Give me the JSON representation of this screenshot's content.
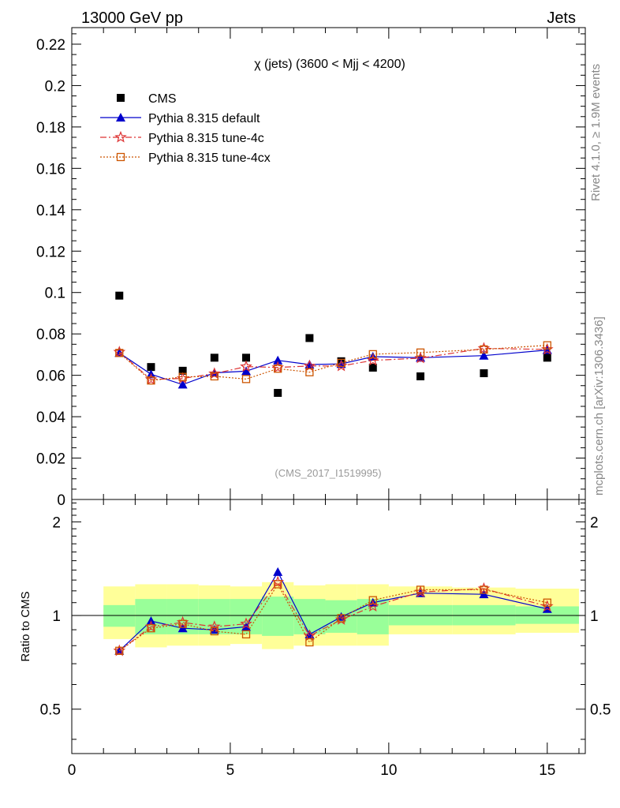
{
  "header": {
    "left": "13000 GeV pp",
    "right": "Jets"
  },
  "side_labels": {
    "rivet": "Rivet 4.1.0, ≥ 1.9M events",
    "mcplots": "mcplots.cern.ch [arXiv:1306.3436]"
  },
  "colors": {
    "cms": "#000000",
    "default": "#0000cc",
    "tune4c": "#dd3333",
    "tune4cx": "#cc5500",
    "band_inner": "#99ff99",
    "band_outer": "#ffff99"
  },
  "chart_data": {
    "type": "scatter",
    "title": "χ (jets) (3600 < Mjj < 4200)",
    "watermark": "(CMS_2017_I1519995)",
    "xlim": [
      0,
      16.2
    ],
    "ylim": [
      0,
      0.228
    ],
    "y_ticks": [
      0,
      0.02,
      0.04,
      0.06,
      0.08,
      0.1,
      0.12,
      0.14,
      0.16,
      0.18,
      0.2,
      0.22
    ],
    "y_tick_labels": [
      "0",
      "0.02",
      "0.04",
      "0.06",
      "0.08",
      "0.1",
      "0.12",
      "0.14",
      "0.16",
      "0.18",
      "0.2",
      "0.22"
    ],
    "x_ticks": [
      0,
      5,
      10,
      15
    ],
    "x_tick_labels": [
      "0",
      "5",
      "10",
      "15"
    ],
    "x": [
      1.5,
      2.5,
      3.5,
      4.5,
      5.5,
      6.5,
      7.5,
      8.5,
      9.5,
      11,
      13,
      15
    ],
    "bin_edges": [
      1,
      2,
      3,
      4,
      5,
      6,
      7,
      8,
      9,
      10,
      12,
      14,
      16
    ],
    "series": [
      {
        "name": "CMS",
        "key": "cms",
        "marker": "square-filled",
        "values": [
          0.0985,
          0.064,
          0.0622,
          0.0685,
          0.0685,
          0.0515,
          0.078,
          0.0668,
          0.0637,
          0.0595,
          0.061,
          0.0685
        ]
      },
      {
        "name": "Pythia 8.315 default",
        "key": "default",
        "marker": "triangle-filled",
        "values": [
          0.0708,
          0.0605,
          0.0555,
          0.0612,
          0.062,
          0.0672,
          0.0652,
          0.0655,
          0.069,
          0.0685,
          0.0695,
          0.0722
        ]
      },
      {
        "name": "Pythia 8.315 tune-4c",
        "key": "tune4c",
        "marker": "star-open",
        "values": [
          0.0712,
          0.058,
          0.0585,
          0.0608,
          0.0642,
          0.0638,
          0.0645,
          0.0645,
          0.0672,
          0.0683,
          0.073,
          0.0725
        ]
      },
      {
        "name": "Pythia 8.315 tune-4cx",
        "key": "tune4cx",
        "marker": "square-open",
        "values": [
          0.0708,
          0.0575,
          0.0592,
          0.0595,
          0.0582,
          0.0632,
          0.0615,
          0.066,
          0.0702,
          0.071,
          0.0725,
          0.0745
        ]
      }
    ],
    "ratio": {
      "ylabel": "Ratio to CMS",
      "ylim": [
        0.36,
        2.36
      ],
      "y_ticks": [
        0.5,
        1,
        2
      ],
      "y_tick_labels": [
        "0.5",
        "1",
        "2"
      ],
      "band_inner_lo": [
        0.92,
        0.87,
        0.87,
        0.87,
        0.87,
        0.86,
        0.87,
        0.88,
        0.87,
        0.93,
        0.93,
        0.94
      ],
      "band_inner_hi": [
        1.08,
        1.13,
        1.13,
        1.13,
        1.13,
        1.15,
        1.13,
        1.12,
        1.13,
        1.08,
        1.08,
        1.07
      ],
      "band_outer_lo": [
        0.84,
        0.79,
        0.8,
        0.8,
        0.81,
        0.78,
        0.8,
        0.8,
        0.8,
        0.87,
        0.87,
        0.88
      ],
      "band_outer_hi": [
        1.24,
        1.26,
        1.26,
        1.25,
        1.24,
        1.28,
        1.25,
        1.26,
        1.26,
        1.24,
        1.23,
        1.22
      ],
      "series": [
        {
          "key": "default",
          "values": [
            0.77,
            0.96,
            0.91,
            0.9,
            0.92,
            1.38,
            0.87,
            0.99,
            1.1,
            1.18,
            1.17,
            1.05
          ]
        },
        {
          "key": "tune4c",
          "values": [
            0.77,
            0.92,
            0.95,
            0.92,
            0.94,
            1.28,
            0.86,
            0.97,
            1.07,
            1.19,
            1.22,
            1.07
          ]
        },
        {
          "key": "tune4cx",
          "values": [
            0.77,
            0.91,
            0.94,
            0.89,
            0.87,
            1.26,
            0.82,
            0.98,
            1.12,
            1.21,
            1.21,
            1.1
          ]
        }
      ]
    }
  }
}
